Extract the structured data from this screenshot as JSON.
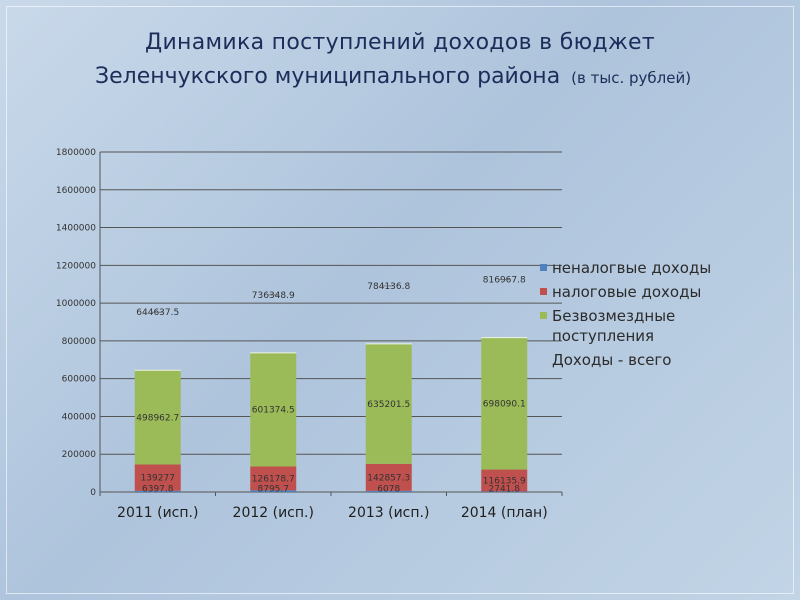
{
  "title": {
    "line1": "Динамика поступлений доходов в бюджет",
    "line2": "Зеленчукского муниципального  района",
    "subtitle": "(в тыс. рублей)"
  },
  "colors": {
    "nontax": "#4f81bd",
    "tax": "#c0504d",
    "free": "#9bbb59"
  },
  "chart_data": {
    "type": "bar",
    "stacked": true,
    "categories": [
      "2011 (исп.)",
      "2012 (исп.)",
      "2013 (исп.)",
      "2014 (план)"
    ],
    "series": [
      {
        "name": "неналогвые доходы",
        "values": [
          6397.8,
          8795.7,
          6078,
          2741.8
        ]
      },
      {
        "name": "налоговые доходы",
        "values": [
          139277,
          126178.7,
          142857.3,
          116135.9
        ]
      },
      {
        "name": "Безвозмездные поступления",
        "values": [
          498962.7,
          601374.5,
          635201.5,
          698090.1
        ]
      },
      {
        "name": "Доходы - всего",
        "values": [
          644637.5,
          736348.9,
          784136.8,
          816967.8
        ]
      }
    ],
    "ylim": [
      0,
      1800000
    ],
    "yticks": [
      0,
      200000,
      400000,
      600000,
      800000,
      1000000,
      1200000,
      1400000,
      1600000,
      1800000
    ],
    "grid": true,
    "legend_position": "right"
  }
}
